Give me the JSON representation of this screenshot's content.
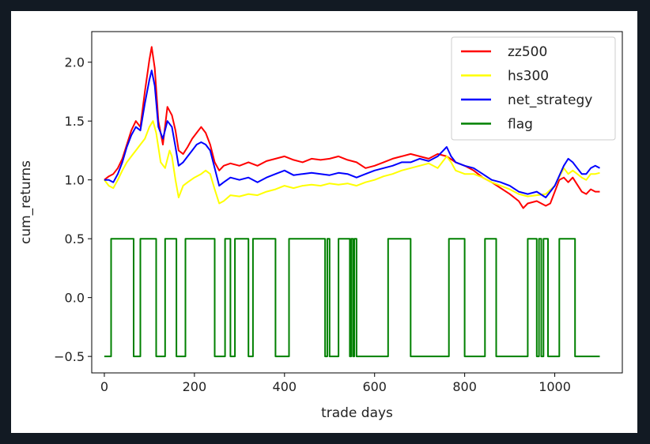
{
  "colors": {
    "page_background": "#121a23",
    "figure_background": "#ffffff",
    "zz500": "#ff0000",
    "hs300": "#ffff00",
    "net_strategy": "#0000ff",
    "flag": "#008000"
  },
  "chart_data": {
    "type": "line",
    "title": "",
    "xlabel": "trade days",
    "ylabel": "cum_returns",
    "xlim": [
      -28,
      1150
    ],
    "ylim": [
      -0.64,
      2.26
    ],
    "xticks": [
      0,
      200,
      400,
      600,
      800,
      1000
    ],
    "yticks": [
      -0.5,
      0.0,
      0.5,
      1.0,
      1.5,
      2.0
    ],
    "xtick_labels": [
      "0",
      "200",
      "400",
      "600",
      "800",
      "1000"
    ],
    "ytick_labels": [
      "−0.5",
      "0.0",
      "0.5",
      "1.0",
      "1.5",
      "2.0"
    ],
    "grid": false,
    "legend_position": "top-right",
    "series": [
      {
        "name": "zz500",
        "color": "#ff0000",
        "points": [
          [
            0,
            1.0
          ],
          [
            10,
            1.03
          ],
          [
            20,
            1.05
          ],
          [
            30,
            1.1
          ],
          [
            40,
            1.18
          ],
          [
            50,
            1.3
          ],
          [
            60,
            1.42
          ],
          [
            70,
            1.5
          ],
          [
            80,
            1.45
          ],
          [
            90,
            1.75
          ],
          [
            100,
            2.02
          ],
          [
            105,
            2.13
          ],
          [
            112,
            1.95
          ],
          [
            120,
            1.5
          ],
          [
            130,
            1.3
          ],
          [
            140,
            1.62
          ],
          [
            150,
            1.55
          ],
          [
            158,
            1.42
          ],
          [
            165,
            1.25
          ],
          [
            175,
            1.22
          ],
          [
            185,
            1.28
          ],
          [
            195,
            1.35
          ],
          [
            205,
            1.4
          ],
          [
            215,
            1.45
          ],
          [
            225,
            1.4
          ],
          [
            235,
            1.3
          ],
          [
            245,
            1.15
          ],
          [
            255,
            1.08
          ],
          [
            265,
            1.12
          ],
          [
            280,
            1.14
          ],
          [
            300,
            1.12
          ],
          [
            320,
            1.15
          ],
          [
            340,
            1.12
          ],
          [
            360,
            1.16
          ],
          [
            380,
            1.18
          ],
          [
            400,
            1.2
          ],
          [
            420,
            1.17
          ],
          [
            440,
            1.15
          ],
          [
            460,
            1.18
          ],
          [
            480,
            1.17
          ],
          [
            500,
            1.18
          ],
          [
            520,
            1.2
          ],
          [
            540,
            1.17
          ],
          [
            560,
            1.15
          ],
          [
            580,
            1.1
          ],
          [
            600,
            1.12
          ],
          [
            620,
            1.15
          ],
          [
            640,
            1.18
          ],
          [
            660,
            1.2
          ],
          [
            680,
            1.22
          ],
          [
            700,
            1.2
          ],
          [
            720,
            1.18
          ],
          [
            740,
            1.22
          ],
          [
            760,
            1.2
          ],
          [
            780,
            1.15
          ],
          [
            800,
            1.12
          ],
          [
            820,
            1.08
          ],
          [
            840,
            1.02
          ],
          [
            860,
            0.98
          ],
          [
            880,
            0.93
          ],
          [
            900,
            0.88
          ],
          [
            920,
            0.82
          ],
          [
            930,
            0.76
          ],
          [
            940,
            0.8
          ],
          [
            960,
            0.82
          ],
          [
            980,
            0.78
          ],
          [
            990,
            0.8
          ],
          [
            1000,
            0.9
          ],
          [
            1010,
            1.0
          ],
          [
            1020,
            1.02
          ],
          [
            1030,
            0.98
          ],
          [
            1040,
            1.02
          ],
          [
            1050,
            0.96
          ],
          [
            1060,
            0.9
          ],
          [
            1070,
            0.88
          ],
          [
            1080,
            0.92
          ],
          [
            1090,
            0.9
          ],
          [
            1100,
            0.9
          ]
        ]
      },
      {
        "name": "hs300",
        "color": "#ffff00",
        "points": [
          [
            0,
            1.0
          ],
          [
            10,
            0.95
          ],
          [
            20,
            0.93
          ],
          [
            30,
            1.0
          ],
          [
            40,
            1.08
          ],
          [
            50,
            1.15
          ],
          [
            60,
            1.2
          ],
          [
            70,
            1.25
          ],
          [
            80,
            1.3
          ],
          [
            90,
            1.35
          ],
          [
            100,
            1.45
          ],
          [
            108,
            1.5
          ],
          [
            115,
            1.4
          ],
          [
            125,
            1.15
          ],
          [
            135,
            1.1
          ],
          [
            145,
            1.25
          ],
          [
            150,
            1.2
          ],
          [
            158,
            1.0
          ],
          [
            165,
            0.85
          ],
          [
            175,
            0.95
          ],
          [
            185,
            0.98
          ],
          [
            200,
            1.02
          ],
          [
            215,
            1.05
          ],
          [
            225,
            1.08
          ],
          [
            235,
            1.05
          ],
          [
            245,
            0.92
          ],
          [
            255,
            0.8
          ],
          [
            265,
            0.82
          ],
          [
            280,
            0.87
          ],
          [
            300,
            0.86
          ],
          [
            320,
            0.88
          ],
          [
            340,
            0.87
          ],
          [
            360,
            0.9
          ],
          [
            380,
            0.92
          ],
          [
            400,
            0.95
          ],
          [
            420,
            0.93
          ],
          [
            440,
            0.95
          ],
          [
            460,
            0.96
          ],
          [
            480,
            0.95
          ],
          [
            500,
            0.97
          ],
          [
            520,
            0.96
          ],
          [
            540,
            0.97
          ],
          [
            560,
            0.95
          ],
          [
            580,
            0.98
          ],
          [
            600,
            1.0
          ],
          [
            620,
            1.03
          ],
          [
            640,
            1.05
          ],
          [
            660,
            1.08
          ],
          [
            680,
            1.1
          ],
          [
            700,
            1.12
          ],
          [
            720,
            1.14
          ],
          [
            740,
            1.1
          ],
          [
            760,
            1.2
          ],
          [
            770,
            1.15
          ],
          [
            780,
            1.08
          ],
          [
            800,
            1.05
          ],
          [
            820,
            1.05
          ],
          [
            840,
            1.02
          ],
          [
            860,
            0.98
          ],
          [
            880,
            0.95
          ],
          [
            900,
            0.92
          ],
          [
            920,
            0.88
          ],
          [
            940,
            0.86
          ],
          [
            960,
            0.87
          ],
          [
            980,
            0.88
          ],
          [
            1000,
            0.95
          ],
          [
            1020,
            1.1
          ],
          [
            1030,
            1.05
          ],
          [
            1040,
            1.08
          ],
          [
            1050,
            1.05
          ],
          [
            1060,
            1.02
          ],
          [
            1070,
            1.0
          ],
          [
            1080,
            1.05
          ],
          [
            1090,
            1.05
          ],
          [
            1100,
            1.06
          ]
        ]
      },
      {
        "name": "net_strategy",
        "color": "#0000ff",
        "points": [
          [
            0,
            1.0
          ],
          [
            10,
            1.0
          ],
          [
            20,
            0.98
          ],
          [
            30,
            1.05
          ],
          [
            40,
            1.15
          ],
          [
            50,
            1.28
          ],
          [
            60,
            1.38
          ],
          [
            70,
            1.45
          ],
          [
            80,
            1.42
          ],
          [
            90,
            1.65
          ],
          [
            100,
            1.85
          ],
          [
            105,
            1.93
          ],
          [
            112,
            1.8
          ],
          [
            120,
            1.45
          ],
          [
            130,
            1.35
          ],
          [
            140,
            1.5
          ],
          [
            150,
            1.45
          ],
          [
            158,
            1.28
          ],
          [
            165,
            1.12
          ],
          [
            175,
            1.15
          ],
          [
            185,
            1.2
          ],
          [
            195,
            1.25
          ],
          [
            205,
            1.3
          ],
          [
            215,
            1.32
          ],
          [
            225,
            1.3
          ],
          [
            235,
            1.25
          ],
          [
            245,
            1.1
          ],
          [
            255,
            0.95
          ],
          [
            265,
            0.98
          ],
          [
            280,
            1.02
          ],
          [
            300,
            1.0
          ],
          [
            320,
            1.02
          ],
          [
            340,
            0.98
          ],
          [
            360,
            1.02
          ],
          [
            380,
            1.05
          ],
          [
            400,
            1.08
          ],
          [
            420,
            1.04
          ],
          [
            440,
            1.05
          ],
          [
            460,
            1.06
          ],
          [
            480,
            1.05
          ],
          [
            500,
            1.04
          ],
          [
            520,
            1.06
          ],
          [
            540,
            1.05
          ],
          [
            560,
            1.02
          ],
          [
            580,
            1.05
          ],
          [
            600,
            1.08
          ],
          [
            620,
            1.1
          ],
          [
            640,
            1.12
          ],
          [
            660,
            1.15
          ],
          [
            680,
            1.15
          ],
          [
            700,
            1.18
          ],
          [
            720,
            1.16
          ],
          [
            740,
            1.2
          ],
          [
            760,
            1.28
          ],
          [
            770,
            1.2
          ],
          [
            780,
            1.15
          ],
          [
            800,
            1.12
          ],
          [
            820,
            1.1
          ],
          [
            840,
            1.05
          ],
          [
            860,
            1.0
          ],
          [
            880,
            0.98
          ],
          [
            900,
            0.95
          ],
          [
            920,
            0.9
          ],
          [
            940,
            0.88
          ],
          [
            960,
            0.9
          ],
          [
            980,
            0.85
          ],
          [
            1000,
            0.95
          ],
          [
            1020,
            1.12
          ],
          [
            1030,
            1.18
          ],
          [
            1040,
            1.15
          ],
          [
            1050,
            1.1
          ],
          [
            1060,
            1.05
          ],
          [
            1070,
            1.05
          ],
          [
            1080,
            1.1
          ],
          [
            1090,
            1.12
          ],
          [
            1100,
            1.1
          ]
        ]
      },
      {
        "name": "flag",
        "color": "#008000",
        "points": [
          [
            0,
            -0.5
          ],
          [
            15,
            -0.5
          ],
          [
            15,
            0.5
          ],
          [
            65,
            0.5
          ],
          [
            65,
            -0.5
          ],
          [
            80,
            -0.5
          ],
          [
            80,
            0.5
          ],
          [
            115,
            0.5
          ],
          [
            115,
            -0.5
          ],
          [
            135,
            -0.5
          ],
          [
            135,
            0.5
          ],
          [
            160,
            0.5
          ],
          [
            160,
            -0.5
          ],
          [
            180,
            -0.5
          ],
          [
            180,
            0.5
          ],
          [
            245,
            0.5
          ],
          [
            245,
            -0.5
          ],
          [
            268,
            -0.5
          ],
          [
            268,
            0.5
          ],
          [
            280,
            0.5
          ],
          [
            280,
            -0.5
          ],
          [
            290,
            -0.5
          ],
          [
            290,
            0.5
          ],
          [
            320,
            0.5
          ],
          [
            320,
            -0.5
          ],
          [
            330,
            -0.5
          ],
          [
            330,
            0.5
          ],
          [
            380,
            0.5
          ],
          [
            380,
            -0.5
          ],
          [
            410,
            -0.5
          ],
          [
            410,
            0.5
          ],
          [
            490,
            0.5
          ],
          [
            490,
            -0.5
          ],
          [
            495,
            -0.5
          ],
          [
            495,
            0.5
          ],
          [
            500,
            0.5
          ],
          [
            500,
            -0.5
          ],
          [
            520,
            -0.5
          ],
          [
            520,
            0.5
          ],
          [
            545,
            0.5
          ],
          [
            545,
            -0.5
          ],
          [
            548,
            -0.5
          ],
          [
            548,
            0.5
          ],
          [
            552,
            0.5
          ],
          [
            552,
            -0.5
          ],
          [
            555,
            -0.5
          ],
          [
            555,
            0.5
          ],
          [
            560,
            0.5
          ],
          [
            560,
            -0.5
          ],
          [
            630,
            -0.5
          ],
          [
            630,
            0.5
          ],
          [
            680,
            0.5
          ],
          [
            680,
            -0.5
          ],
          [
            765,
            -0.5
          ],
          [
            765,
            0.5
          ],
          [
            800,
            0.5
          ],
          [
            800,
            -0.5
          ],
          [
            845,
            -0.5
          ],
          [
            845,
            0.5
          ],
          [
            870,
            0.5
          ],
          [
            870,
            -0.5
          ],
          [
            940,
            -0.5
          ],
          [
            940,
            0.5
          ],
          [
            960,
            0.5
          ],
          [
            960,
            -0.5
          ],
          [
            965,
            -0.5
          ],
          [
            965,
            0.5
          ],
          [
            970,
            0.5
          ],
          [
            970,
            -0.5
          ],
          [
            975,
            -0.5
          ],
          [
            975,
            0.5
          ],
          [
            985,
            0.5
          ],
          [
            985,
            -0.5
          ],
          [
            1010,
            -0.5
          ],
          [
            1010,
            0.5
          ],
          [
            1045,
            0.5
          ],
          [
            1045,
            -0.5
          ],
          [
            1100,
            -0.5
          ]
        ]
      }
    ]
  }
}
